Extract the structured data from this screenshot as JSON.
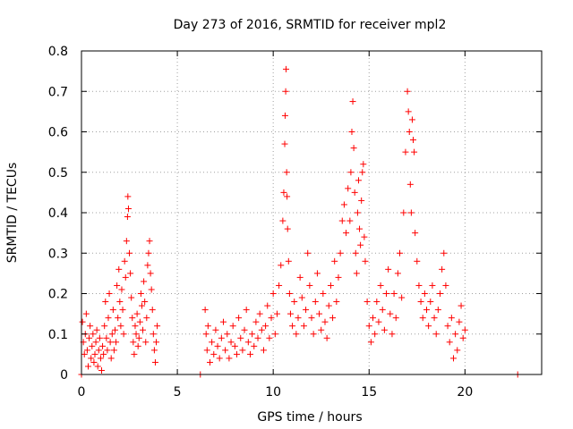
{
  "chart_data": {
    "type": "scatter",
    "title": "Day 273 of 2016, SRMTID for receiver mpl2",
    "xlabel": "GPS time / hours",
    "ylabel": "SRMTID / TECUs",
    "xlim": [
      0,
      24
    ],
    "ylim": [
      0,
      0.8
    ],
    "x_ticks": [
      0,
      5,
      10,
      15,
      20
    ],
    "x_tick_labels": [
      "0",
      "5",
      "10",
      "15",
      "20"
    ],
    "y_ticks": [
      0,
      0.1,
      0.2,
      0.3,
      0.4,
      0.5,
      0.6,
      0.7,
      0.8
    ],
    "y_tick_labels": [
      "0",
      "0.1",
      "0.2",
      "0.3",
      "0.4",
      "0.5",
      "0.6",
      "0.7",
      "0.8"
    ],
    "grid": true,
    "marker": "+",
    "marker_color": "#ff0000",
    "series": [
      {
        "name": "SRMTID",
        "points": [
          [
            0.05,
            0.13
          ],
          [
            0.1,
            0.08
          ],
          [
            0.15,
            0.05
          ],
          [
            0.2,
            0.1
          ],
          [
            0.25,
            0.15
          ],
          [
            0.3,
            0.06
          ],
          [
            0.35,
            0.02
          ],
          [
            0.4,
            0.09
          ],
          [
            0.45,
            0.12
          ],
          [
            0.5,
            0.04
          ],
          [
            0.55,
            0.07
          ],
          [
            0.6,
            0.1
          ],
          [
            0.65,
            0.03
          ],
          [
            0.7,
            0.05
          ],
          [
            0.75,
            0.08
          ],
          [
            0.8,
            0.11
          ],
          [
            0.85,
            0.02
          ],
          [
            0.9,
            0.06
          ],
          [
            0.95,
            0.09
          ],
          [
            1.0,
            0.04
          ],
          [
            1.05,
            0.01
          ],
          [
            1.1,
            0.07
          ],
          [
            1.15,
            0.05
          ],
          [
            1.2,
            0.12
          ],
          [
            1.25,
            0.18
          ],
          [
            1.3,
            0.09
          ],
          [
            1.35,
            0.06
          ],
          [
            1.4,
            0.14
          ],
          [
            1.45,
            0.2
          ],
          [
            1.5,
            0.08
          ],
          [
            1.55,
            0.04
          ],
          [
            1.6,
            0.1
          ],
          [
            1.65,
            0.16
          ],
          [
            1.7,
            0.06
          ],
          [
            1.75,
            0.11
          ],
          [
            1.8,
            0.08
          ],
          [
            1.85,
            0.22
          ],
          [
            1.9,
            0.14
          ],
          [
            1.95,
            0.26
          ],
          [
            2.0,
            0.18
          ],
          [
            2.05,
            0.12
          ],
          [
            2.1,
            0.21
          ],
          [
            2.15,
            0.16
          ],
          [
            2.2,
            0.1
          ],
          [
            2.25,
            0.28
          ],
          [
            2.3,
            0.24
          ],
          [
            2.35,
            0.33
          ],
          [
            2.4,
            0.39
          ],
          [
            2.42,
            0.44
          ],
          [
            2.45,
            0.41
          ],
          [
            2.5,
            0.3
          ],
          [
            2.55,
            0.25
          ],
          [
            2.6,
            0.19
          ],
          [
            2.65,
            0.14
          ],
          [
            2.7,
            0.08
          ],
          [
            2.75,
            0.05
          ],
          [
            2.8,
            0.12
          ],
          [
            2.85,
            0.1
          ],
          [
            2.9,
            0.15
          ],
          [
            2.95,
            0.07
          ],
          [
            3.0,
            0.09
          ],
          [
            3.05,
            0.13
          ],
          [
            3.1,
            0.2
          ],
          [
            3.15,
            0.17
          ],
          [
            3.2,
            0.11
          ],
          [
            3.25,
            0.23
          ],
          [
            3.3,
            0.18
          ],
          [
            3.35,
            0.08
          ],
          [
            3.4,
            0.14
          ],
          [
            3.45,
            0.27
          ],
          [
            3.5,
            0.3
          ],
          [
            3.55,
            0.33
          ],
          [
            3.6,
            0.25
          ],
          [
            3.65,
            0.21
          ],
          [
            3.7,
            0.16
          ],
          [
            3.75,
            0.1
          ],
          [
            3.8,
            0.06
          ],
          [
            3.85,
            0.03
          ],
          [
            3.9,
            0.08
          ],
          [
            3.95,
            0.12
          ],
          [
            6.45,
            0.16
          ],
          [
            6.5,
            0.1
          ],
          [
            6.55,
            0.06
          ],
          [
            6.6,
            0.12
          ],
          [
            6.7,
            0.03
          ],
          [
            6.8,
            0.08
          ],
          [
            6.9,
            0.05
          ],
          [
            7.0,
            0.11
          ],
          [
            7.1,
            0.07
          ],
          [
            7.2,
            0.04
          ],
          [
            7.3,
            0.09
          ],
          [
            7.4,
            0.13
          ],
          [
            7.5,
            0.06
          ],
          [
            7.6,
            0.1
          ],
          [
            7.7,
            0.04
          ],
          [
            7.8,
            0.08
          ],
          [
            7.9,
            0.12
          ],
          [
            8.0,
            0.07
          ],
          [
            8.1,
            0.05
          ],
          [
            8.2,
            0.14
          ],
          [
            8.3,
            0.09
          ],
          [
            8.4,
            0.06
          ],
          [
            8.5,
            0.11
          ],
          [
            8.6,
            0.16
          ],
          [
            8.7,
            0.08
          ],
          [
            8.8,
            0.05
          ],
          [
            8.9,
            0.1
          ],
          [
            9.0,
            0.07
          ],
          [
            9.1,
            0.13
          ],
          [
            9.2,
            0.09
          ],
          [
            9.3,
            0.15
          ],
          [
            9.4,
            0.11
          ],
          [
            9.5,
            0.06
          ],
          [
            9.6,
            0.12
          ],
          [
            9.7,
            0.17
          ],
          [
            9.8,
            0.09
          ],
          [
            9.9,
            0.14
          ],
          [
            10.0,
            0.2
          ],
          [
            10.1,
            0.1
          ],
          [
            10.2,
            0.15
          ],
          [
            10.3,
            0.22
          ],
          [
            10.4,
            0.27
          ],
          [
            10.5,
            0.38
          ],
          [
            10.55,
            0.45
          ],
          [
            10.6,
            0.57
          ],
          [
            10.62,
            0.64
          ],
          [
            10.65,
            0.7
          ],
          [
            10.67,
            0.755
          ],
          [
            10.7,
            0.5
          ],
          [
            10.72,
            0.44
          ],
          [
            10.75,
            0.36
          ],
          [
            10.8,
            0.28
          ],
          [
            10.85,
            0.2
          ],
          [
            10.9,
            0.15
          ],
          [
            11.0,
            0.12
          ],
          [
            11.1,
            0.18
          ],
          [
            11.2,
            0.1
          ],
          [
            11.3,
            0.14
          ],
          [
            11.4,
            0.24
          ],
          [
            11.5,
            0.19
          ],
          [
            11.6,
            0.12
          ],
          [
            11.7,
            0.16
          ],
          [
            11.8,
            0.3
          ],
          [
            11.9,
            0.22
          ],
          [
            12.0,
            0.14
          ],
          [
            12.1,
            0.1
          ],
          [
            12.2,
            0.18
          ],
          [
            12.3,
            0.25
          ],
          [
            12.4,
            0.15
          ],
          [
            12.5,
            0.11
          ],
          [
            12.6,
            0.2
          ],
          [
            12.7,
            0.13
          ],
          [
            12.8,
            0.09
          ],
          [
            12.9,
            0.17
          ],
          [
            13.0,
            0.22
          ],
          [
            13.1,
            0.14
          ],
          [
            13.2,
            0.28
          ],
          [
            13.3,
            0.18
          ],
          [
            13.4,
            0.24
          ],
          [
            13.5,
            0.3
          ],
          [
            13.6,
            0.38
          ],
          [
            13.7,
            0.42
          ],
          [
            13.8,
            0.35
          ],
          [
            13.9,
            0.46
          ],
          [
            14.0,
            0.38
          ],
          [
            14.05,
            0.5
          ],
          [
            14.1,
            0.6
          ],
          [
            14.15,
            0.675
          ],
          [
            14.2,
            0.56
          ],
          [
            14.25,
            0.45
          ],
          [
            14.3,
            0.3
          ],
          [
            14.35,
            0.25
          ],
          [
            14.4,
            0.4
          ],
          [
            14.45,
            0.48
          ],
          [
            14.5,
            0.36
          ],
          [
            14.55,
            0.32
          ],
          [
            14.6,
            0.43
          ],
          [
            14.65,
            0.5
          ],
          [
            14.7,
            0.52
          ],
          [
            14.75,
            0.34
          ],
          [
            14.8,
            0.28
          ],
          [
            14.9,
            0.18
          ],
          [
            15.0,
            0.12
          ],
          [
            15.1,
            0.08
          ],
          [
            15.2,
            0.14
          ],
          [
            15.3,
            0.1
          ],
          [
            15.4,
            0.18
          ],
          [
            15.5,
            0.13
          ],
          [
            15.6,
            0.22
          ],
          [
            15.7,
            0.16
          ],
          [
            15.8,
            0.11
          ],
          [
            15.9,
            0.2
          ],
          [
            16.0,
            0.26
          ],
          [
            16.1,
            0.15
          ],
          [
            16.2,
            0.1
          ],
          [
            16.3,
            0.2
          ],
          [
            16.4,
            0.14
          ],
          [
            16.5,
            0.25
          ],
          [
            16.6,
            0.3
          ],
          [
            16.7,
            0.19
          ],
          [
            16.8,
            0.4
          ],
          [
            16.9,
            0.55
          ],
          [
            17.0,
            0.7
          ],
          [
            17.05,
            0.65
          ],
          [
            17.1,
            0.6
          ],
          [
            17.15,
            0.47
          ],
          [
            17.2,
            0.4
          ],
          [
            17.25,
            0.63
          ],
          [
            17.3,
            0.58
          ],
          [
            17.35,
            0.55
          ],
          [
            17.4,
            0.35
          ],
          [
            17.5,
            0.28
          ],
          [
            17.6,
            0.22
          ],
          [
            17.7,
            0.18
          ],
          [
            17.8,
            0.14
          ],
          [
            17.9,
            0.2
          ],
          [
            18.0,
            0.16
          ],
          [
            18.1,
            0.12
          ],
          [
            18.2,
            0.18
          ],
          [
            18.3,
            0.22
          ],
          [
            18.4,
            0.14
          ],
          [
            18.5,
            0.1
          ],
          [
            18.6,
            0.16
          ],
          [
            18.7,
            0.2
          ],
          [
            18.8,
            0.26
          ],
          [
            18.9,
            0.3
          ],
          [
            19.0,
            0.22
          ],
          [
            19.1,
            0.12
          ],
          [
            19.2,
            0.08
          ],
          [
            19.3,
            0.14
          ],
          [
            19.4,
            0.04
          ],
          [
            19.5,
            0.1
          ],
          [
            19.6,
            0.06
          ],
          [
            19.7,
            0.13
          ],
          [
            19.8,
            0.17
          ],
          [
            19.9,
            0.09
          ],
          [
            20.0,
            0.11
          ],
          [
            22.75,
            0.0
          ],
          [
            0.0,
            0.0
          ],
          [
            6.2,
            0.0
          ]
        ]
      }
    ]
  }
}
